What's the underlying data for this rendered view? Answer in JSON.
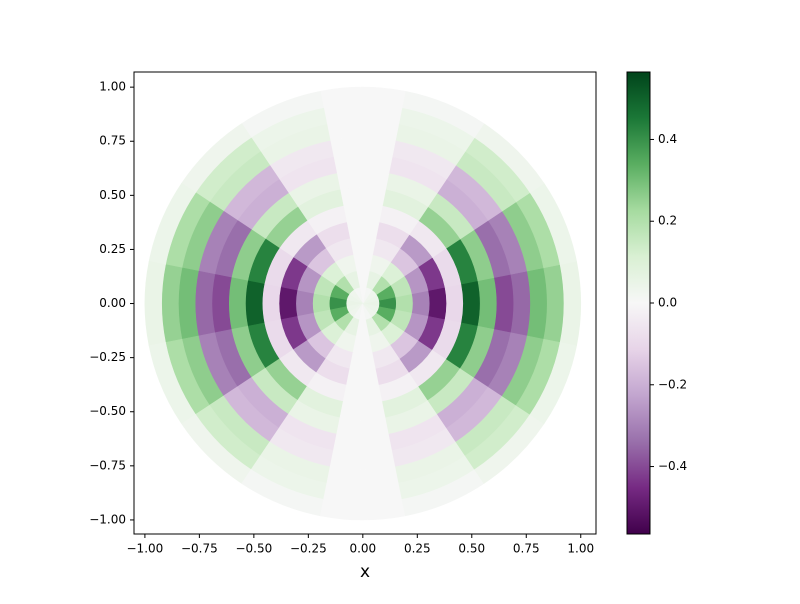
{
  "chart_data": {
    "type": "polar-heatmap",
    "xlabel": "x",
    "radius": 1,
    "colormap": [
      "#40004b",
      "#762a83",
      "#9970ab",
      "#c2a5cf",
      "#e7d4e8",
      "#f7f7f7",
      "#d9f0d3",
      "#a6dba0",
      "#5aae61",
      "#1b7837",
      "#00441b"
    ],
    "clim": [
      -0.565,
      0.565
    ],
    "xlim": [
      -1.05,
      1.07
    ],
    "ylim": [
      -1.065,
      1.07
    ],
    "xticks": [
      {
        "value": -1,
        "label": "−1.00"
      },
      {
        "value": -0.75,
        "label": "−0.75"
      },
      {
        "value": -0.5,
        "label": "−0.50"
      },
      {
        "value": -0.25,
        "label": "−0.25"
      },
      {
        "value": 0,
        "label": "0.00"
      },
      {
        "value": 0.25,
        "label": "0.25"
      },
      {
        "value": 0.5,
        "label": "0.50"
      },
      {
        "value": 0.75,
        "label": "0.75"
      },
      {
        "value": 1,
        "label": "1.00"
      }
    ],
    "yticks": [
      {
        "value": -1,
        "label": "−1.00"
      },
      {
        "value": -0.75,
        "label": "−0.75"
      },
      {
        "value": -0.5,
        "label": "−0.50"
      },
      {
        "value": -0.25,
        "label": "−0.25"
      },
      {
        "value": 0,
        "label": "0.00"
      },
      {
        "value": 0.25,
        "label": "0.25"
      },
      {
        "value": 0.5,
        "label": "0.50"
      },
      {
        "value": 0.75,
        "label": "0.75"
      },
      {
        "value": 1,
        "label": "1.00"
      }
    ],
    "cticks": [
      {
        "value": -0.4,
        "label": "−0.4"
      },
      {
        "value": -0.2,
        "label": "−0.2"
      },
      {
        "value": 0,
        "label": "0.0"
      },
      0.2,
      0.4
    ],
    "values": [
      [
        0.05,
        0.04,
        0.03,
        0.01,
        0,
        0.01,
        0.03,
        0.04,
        0.05,
        0.04,
        0.03,
        0.01,
        0,
        0.01,
        0.03,
        0.04
      ],
      [
        0.4,
        0.34,
        0.2,
        0.06,
        0,
        0.06,
        0.2,
        0.34,
        0.4,
        0.34,
        0.2,
        0.06,
        0,
        0.06,
        0.2,
        0.34
      ],
      [
        0.2,
        0.17,
        0.1,
        0.03,
        0,
        0.03,
        0.1,
        0.17,
        0.2,
        0.17,
        0.1,
        0.03,
        0,
        0.03,
        0.1,
        0.17
      ],
      [
        -0.3,
        -0.26,
        -0.15,
        -0.05,
        0,
        -0.05,
        -0.15,
        -0.26,
        -0.3,
        -0.26,
        -0.15,
        -0.05,
        0,
        -0.05,
        -0.15,
        -0.26
      ],
      [
        -0.5,
        -0.43,
        -0.25,
        -0.08,
        0,
        -0.08,
        -0.25,
        -0.43,
        -0.5,
        -0.43,
        -0.25,
        -0.08,
        0,
        -0.08,
        -0.25,
        -0.43
      ],
      [
        -0.1,
        -0.09,
        -0.05,
        -0.02,
        0,
        -0.02,
        -0.05,
        -0.09,
        -0.1,
        -0.09,
        -0.05,
        -0.02,
        0,
        -0.02,
        -0.05,
        -0.09
      ],
      [
        0.5,
        0.43,
        0.25,
        0.08,
        0,
        0.08,
        0.25,
        0.43,
        0.5,
        0.43,
        0.25,
        0.08,
        0,
        0.08,
        0.25,
        0.43
      ],
      [
        0.3,
        0.26,
        0.15,
        0.05,
        0,
        0.05,
        0.15,
        0.26,
        0.3,
        0.26,
        0.15,
        0.05,
        0,
        0.05,
        0.15,
        0.26
      ],
      [
        -0.4,
        -0.34,
        -0.2,
        -0.06,
        0,
        -0.06,
        -0.2,
        -0.34,
        -0.4,
        -0.34,
        -0.2,
        -0.06,
        0,
        -0.06,
        -0.2,
        -0.34
      ],
      [
        -0.35,
        -0.3,
        -0.18,
        -0.05,
        0,
        -0.05,
        -0.18,
        -0.3,
        -0.35,
        -0.3,
        -0.18,
        -0.05,
        0,
        -0.05,
        -0.18,
        -0.3
      ],
      [
        0.3,
        0.26,
        0.15,
        0.05,
        0,
        0.05,
        0.15,
        0.26,
        0.3,
        0.26,
        0.15,
        0.05,
        0,
        0.05,
        0.15,
        0.26
      ],
      [
        0.25,
        0.21,
        0.13,
        0.04,
        0,
        0.04,
        0.13,
        0.21,
        0.25,
        0.21,
        0.13,
        0.04,
        0,
        0.04,
        0.13,
        0.21
      ],
      [
        0.05,
        0.04,
        0.03,
        0.01,
        0,
        0.01,
        0.03,
        0.04,
        0.05,
        0.04,
        0.03,
        0.01,
        0,
        0.01,
        0.03,
        0.04
      ]
    ]
  }
}
